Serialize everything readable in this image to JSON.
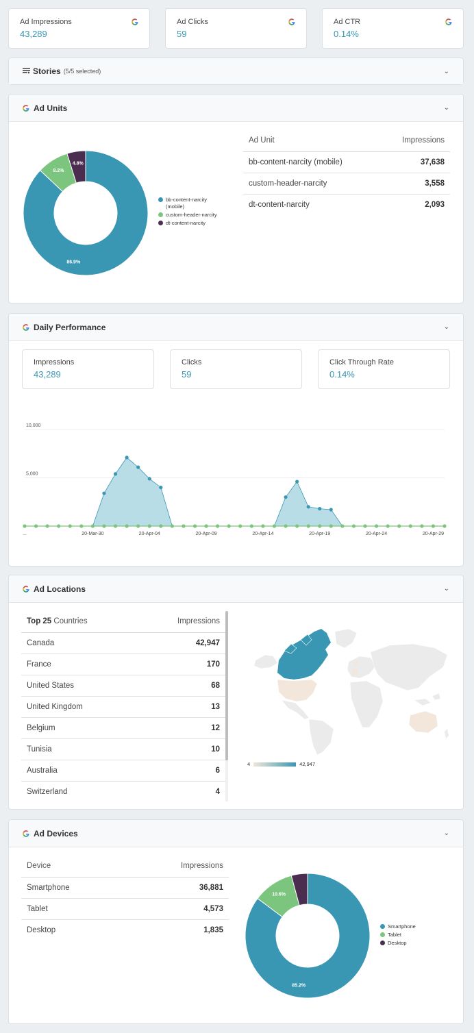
{
  "kpis": [
    {
      "label": "Ad Impressions",
      "value": "43,289"
    },
    {
      "label": "Ad Clicks",
      "value": "59"
    },
    {
      "label": "Ad CTR",
      "value": "0.14%"
    }
  ],
  "stories": {
    "title": "Stories",
    "sub": "(5/5 selected)"
  },
  "ad_units": {
    "title": "Ad Units",
    "table_headers": [
      "Ad Unit",
      "Impressions"
    ],
    "rows": [
      {
        "name": "bb-content-narcity (mobile)",
        "value": "37,638"
      },
      {
        "name": "custom-header-narcity",
        "value": "3,558"
      },
      {
        "name": "dt-content-narcity",
        "value": "2,093"
      }
    ],
    "legend": [
      "bb-content-narcity (mobile)",
      "custom-header-narcity",
      "dt-content-narcity"
    ],
    "slice_labels": [
      "86.9%",
      "8.2%",
      "4.8%"
    ]
  },
  "daily": {
    "title": "Daily Performance",
    "kpis": [
      {
        "label": "Impressions",
        "value": "43,289"
      },
      {
        "label": "Clicks",
        "value": "59"
      },
      {
        "label": "Click Through Rate",
        "value": "0.14%"
      }
    ]
  },
  "locations": {
    "title": "Ad Locations",
    "header_bold": "Top 25",
    "header_rest": " Countries",
    "header_value": "Impressions",
    "rows": [
      {
        "name": "Canada",
        "value": "42,947"
      },
      {
        "name": "France",
        "value": "170"
      },
      {
        "name": "United States",
        "value": "68"
      },
      {
        "name": "United Kingdom",
        "value": "13"
      },
      {
        "name": "Belgium",
        "value": "12"
      },
      {
        "name": "Tunisia",
        "value": "10"
      },
      {
        "name": "Australia",
        "value": "6"
      },
      {
        "name": "Switzerland",
        "value": "4"
      }
    ],
    "scale_min": "4",
    "scale_max": "42,947"
  },
  "devices": {
    "title": "Ad Devices",
    "table_headers": [
      "Device",
      "Impressions"
    ],
    "rows": [
      {
        "name": "Smartphone",
        "value": "36,881"
      },
      {
        "name": "Tablet",
        "value": "4,573"
      },
      {
        "name": "Desktop",
        "value": "1,835"
      }
    ],
    "legend": [
      "Smartphone",
      "Tablet",
      "Desktop"
    ],
    "slice_labels": [
      "85.2%",
      "10.6%"
    ]
  },
  "colors": {
    "teal": "#3a97b3",
    "green": "#7cc57e",
    "purple": "#4a2d4f",
    "area": "#b9dde6"
  },
  "chart_data": [
    {
      "type": "pie",
      "labels": [
        "bb-content-narcity (mobile)",
        "custom-header-narcity",
        "dt-content-narcity"
      ],
      "values": [
        86.9,
        8.2,
        4.8
      ]
    },
    {
      "type": "area",
      "x_tick_labels": [
        "...",
        "20-Mar-30",
        "20-Apr-04",
        "20-Apr-09",
        "20-Apr-14",
        "20-Apr-19",
        "20-Apr-24",
        "20-Apr-29"
      ],
      "y_tick_labels": [
        "5,000",
        "10,000"
      ],
      "ylim": [
        0,
        10000
      ],
      "series": [
        {
          "values": [
            0,
            0,
            0,
            0,
            0,
            0,
            0,
            3400,
            5400,
            7100,
            6100,
            4900,
            4000,
            0,
            0,
            0,
            0,
            0,
            0,
            0,
            0,
            0,
            0,
            3000,
            4600,
            2000,
            1800,
            1700,
            0,
            0,
            0,
            0,
            0,
            0,
            0,
            0,
            0,
            0
          ]
        },
        {
          "values": [
            0,
            0,
            0,
            0,
            0,
            0,
            0,
            0,
            0,
            0,
            0,
            0,
            0,
            0,
            0,
            0,
            0,
            0,
            0,
            0,
            0,
            0,
            0,
            0,
            0,
            0,
            0,
            0,
            0,
            0,
            0,
            0,
            0,
            0,
            0,
            0,
            0,
            0
          ]
        }
      ]
    },
    {
      "type": "pie",
      "labels": [
        "Smartphone",
        "Tablet",
        "Desktop"
      ],
      "values": [
        85.2,
        10.6,
        4.2
      ]
    }
  ]
}
